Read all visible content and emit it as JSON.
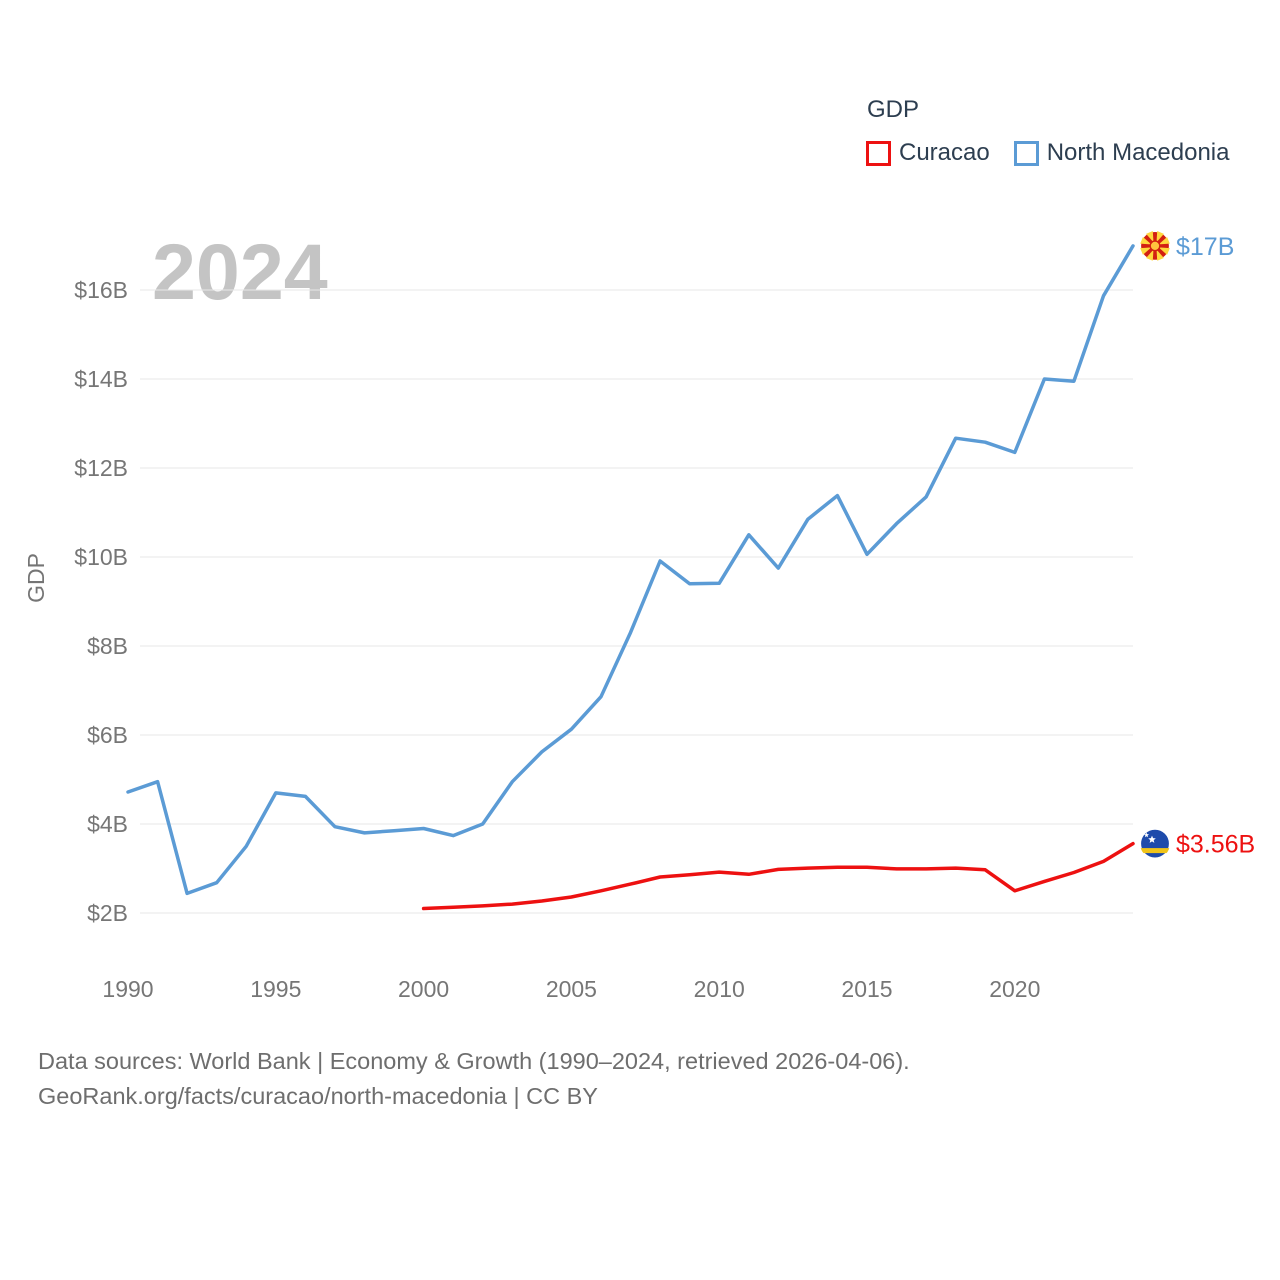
{
  "legend": {
    "title": "GDP",
    "items": [
      {
        "label": "Curacao",
        "color": "#ed1111"
      },
      {
        "label": "North Macedonia",
        "color": "#5b9bd5"
      }
    ]
  },
  "watermark": "2024",
  "footer": {
    "line1": "Data sources: World Bank | Economy & Growth (1990–2024, retrieved 2026-04-06).",
    "line2": "GeoRank.org/facts/curacao/north-macedonia | CC BY"
  },
  "chart_data": {
    "type": "line",
    "title": "GDP",
    "xlabel": "",
    "ylabel": "GDP",
    "grid": true,
    "legend_position": "top-right",
    "xlim": [
      1990,
      2024
    ],
    "ylim": [
      1.5,
      17.5
    ],
    "x_ticks": [
      1990,
      1995,
      2000,
      2005,
      2010,
      2015,
      2020
    ],
    "y_ticks": [
      {
        "value": 2,
        "label": "$2B"
      },
      {
        "value": 4,
        "label": "$4B"
      },
      {
        "value": 6,
        "label": "$6B"
      },
      {
        "value": 8,
        "label": "$8B"
      },
      {
        "value": 10,
        "label": "$10B"
      },
      {
        "value": 12,
        "label": "$12B"
      },
      {
        "value": 14,
        "label": "$14B"
      },
      {
        "value": 16,
        "label": "$16B"
      }
    ],
    "series": [
      {
        "name": "Curacao",
        "color": "#ed1111",
        "end_label": "$3.56B",
        "flag": "curacao",
        "years": [
          2000,
          2001,
          2002,
          2003,
          2004,
          2005,
          2006,
          2007,
          2008,
          2009,
          2010,
          2011,
          2012,
          2013,
          2014,
          2015,
          2016,
          2017,
          2018,
          2019,
          2020,
          2021,
          2022,
          2023,
          2024
        ],
        "values": [
          2.1,
          2.13,
          2.16,
          2.2,
          2.27,
          2.36,
          2.5,
          2.65,
          2.81,
          2.86,
          2.92,
          2.87,
          2.98,
          3.01,
          3.03,
          3.03,
          2.99,
          2.99,
          3.01,
          2.97,
          2.5,
          2.71,
          2.91,
          3.16,
          3.56
        ]
      },
      {
        "name": "North Macedonia",
        "color": "#5b9bd5",
        "end_label": "$17B",
        "flag": "north-macedonia",
        "years": [
          1990,
          1991,
          1992,
          1993,
          1994,
          1995,
          1996,
          1997,
          1998,
          1999,
          2000,
          2001,
          2002,
          2003,
          2004,
          2005,
          2006,
          2007,
          2008,
          2009,
          2010,
          2011,
          2012,
          2013,
          2014,
          2015,
          2016,
          2017,
          2018,
          2019,
          2020,
          2021,
          2022,
          2023,
          2024
        ],
        "values": [
          4.72,
          4.95,
          2.44,
          2.68,
          3.5,
          4.7,
          4.62,
          3.94,
          3.8,
          3.85,
          3.9,
          3.74,
          4.0,
          4.95,
          5.62,
          6.13,
          6.86,
          8.3,
          9.91,
          9.4,
          9.41,
          10.5,
          9.75,
          10.85,
          11.38,
          10.06,
          10.75,
          11.35,
          12.67,
          12.58,
          12.35,
          14.0,
          13.95,
          15.87,
          16.99
        ]
      }
    ]
  }
}
